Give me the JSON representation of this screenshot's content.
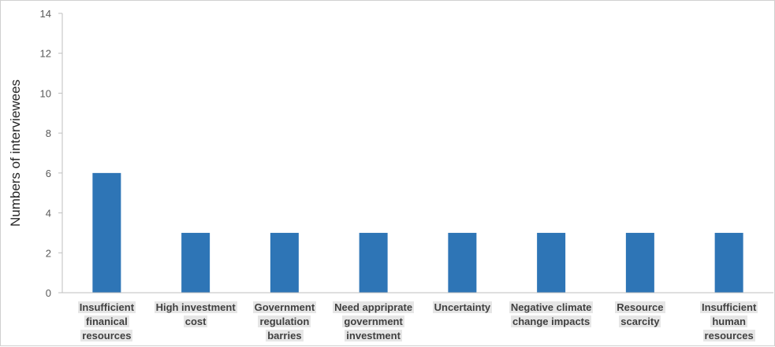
{
  "chart_data": {
    "type": "bar",
    "categories": [
      "Insufficient finanical resources",
      "High investment cost",
      "Government regulation barries",
      "Need appriprate government investment",
      "Uncertainty",
      "Negative climate change impacts",
      "Resource scarcity",
      "Insufficient human resources"
    ],
    "category_lines": [
      [
        "Insufficient",
        "finanical",
        "resources"
      ],
      [
        "High investment",
        "cost"
      ],
      [
        "Government",
        "regulation",
        "barries"
      ],
      [
        "Need appriprate",
        "government",
        "investment"
      ],
      [
        "Uncertainty"
      ],
      [
        "Negative climate",
        "change impacts"
      ],
      [
        "Resource",
        "scarcity"
      ],
      [
        "Insufficient",
        "human",
        "resources"
      ]
    ],
    "values": [
      6,
      3,
      3,
      3,
      3,
      3,
      3,
      3
    ],
    "title": "",
    "xlabel": "",
    "ylabel": "Numbers of interviewees",
    "ylim": [
      0,
      14
    ],
    "yticks": [
      0,
      2,
      4,
      6,
      8,
      10,
      12,
      14
    ],
    "grid": false,
    "legend": "none",
    "bar_color": "#2e75b6",
    "axis_color": "#bfbfbf",
    "label_bg_color": "#e6e6e6"
  }
}
